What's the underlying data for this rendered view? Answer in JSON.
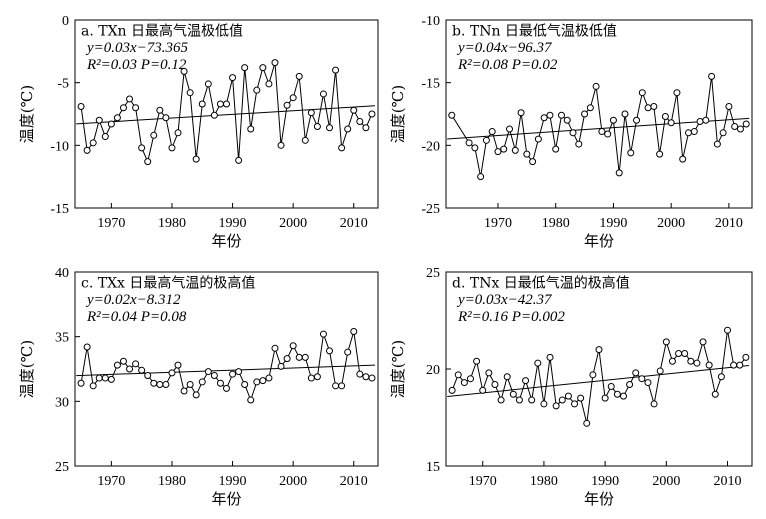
{
  "figure": {
    "xlabel": "年份",
    "ylabel": "温度(℃)"
  },
  "chart_data": [
    {
      "type": "line",
      "title": "a. TXn 日最高气温极低值",
      "equation": "y=0.03x−73.365",
      "stats": "R²=0.03 P=0.12",
      "xlabel": "年份",
      "ylabel": "温度(℃)",
      "xlim": [
        1964,
        2014
      ],
      "ylim": [
        -15,
        0
      ],
      "xticks": [
        1970,
        1980,
        1990,
        2000,
        2010
      ],
      "yticks": [
        0,
        -5,
        -10,
        -15
      ],
      "x": [
        1965,
        1966,
        1967,
        1968,
        1969,
        1970,
        1971,
        1972,
        1973,
        1974,
        1975,
        1976,
        1977,
        1978,
        1979,
        1980,
        1981,
        1982,
        1983,
        1984,
        1985,
        1986,
        1987,
        1988,
        1989,
        1990,
        1991,
        1992,
        1993,
        1994,
        1995,
        1996,
        1997,
        1998,
        1999,
        2000,
        2001,
        2002,
        2003,
        2004,
        2005,
        2006,
        2007,
        2008,
        2009,
        2010,
        2011,
        2012,
        2013
      ],
      "values": [
        -6.9,
        -10.4,
        -9.8,
        -8.0,
        -9.3,
        -8.3,
        -7.8,
        -7.0,
        -6.3,
        -7.0,
        -10.2,
        -11.3,
        -9.2,
        -7.2,
        -7.8,
        -10.2,
        -9.0,
        -4.1,
        -5.8,
        -11.1,
        -6.7,
        -5.1,
        -7.6,
        -6.7,
        -6.7,
        -4.6,
        -11.2,
        -3.8,
        -8.7,
        -5.6,
        -3.8,
        -5.1,
        -3.4,
        -10.0,
        -6.8,
        -6.2,
        -4.5,
        -9.6,
        -7.4,
        -8.5,
        -5.9,
        -8.6,
        -4.0,
        -10.2,
        -8.7,
        -7.2,
        -8.1,
        -8.6,
        -7.5
      ],
      "trend": [
        -8.285,
        -6.845
      ]
    },
    {
      "type": "line",
      "title": "b. TNn 日最低气温极低值",
      "equation": "y=0.04x−96.37",
      "stats": "R²=0.08 P=0.02",
      "xlabel": "年份",
      "ylabel": "温度(℃)",
      "xlim": [
        1961,
        2014
      ],
      "ylim": [
        -25,
        -10
      ],
      "xticks": [
        1970,
        1980,
        1990,
        2000,
        2010
      ],
      "yticks": [
        -10,
        -15,
        -20,
        -25
      ],
      "x": [
        1962,
        1965,
        1966,
        1967,
        1968,
        1969,
        1970,
        1971,
        1972,
        1973,
        1974,
        1975,
        1976,
        1977,
        1978,
        1979,
        1980,
        1981,
        1982,
        1983,
        1984,
        1985,
        1986,
        1987,
        1988,
        1989,
        1990,
        1991,
        1992,
        1993,
        1994,
        1995,
        1996,
        1997,
        1998,
        1999,
        2000,
        2001,
        2002,
        2003,
        2004,
        2005,
        2006,
        2007,
        2008,
        2009,
        2010,
        2011,
        2012,
        2013
      ],
      "values": [
        -17.6,
        -19.8,
        -20.2,
        -22.5,
        -19.6,
        -18.9,
        -20.5,
        -20.3,
        -18.7,
        -20.4,
        -17.4,
        -20.7,
        -21.3,
        -19.5,
        -17.8,
        -17.6,
        -20.3,
        -17.6,
        -18.0,
        -19.0,
        -19.9,
        -17.5,
        -17.0,
        -15.3,
        -18.9,
        -19.1,
        -18.0,
        -22.2,
        -17.5,
        -20.6,
        -18.0,
        -15.8,
        -17.0,
        -16.9,
        -20.7,
        -17.7,
        -18.2,
        -15.8,
        -21.1,
        -19.0,
        -18.9,
        -18.1,
        -18.0,
        -14.5,
        -19.9,
        -19.0,
        -16.9,
        -18.5,
        -18.7,
        -18.3
      ],
      "trend": [
        -19.49,
        -17.85
      ]
    },
    {
      "type": "line",
      "title": "c. TXx 日最高气温的极高值",
      "equation": "y=0.02x−8.312",
      "stats": "R²=0.04 P=0.08",
      "xlabel": "年份",
      "ylabel": "温度(℃)",
      "xlim": [
        1964,
        2014
      ],
      "ylim": [
        25,
        40
      ],
      "xticks": [
        1970,
        1980,
        1990,
        2000,
        2010
      ],
      "yticks": [
        40,
        35,
        30,
        25
      ],
      "x": [
        1965,
        1966,
        1967,
        1968,
        1969,
        1970,
        1971,
        1972,
        1973,
        1974,
        1975,
        1976,
        1977,
        1978,
        1979,
        1980,
        1981,
        1982,
        1983,
        1984,
        1985,
        1986,
        1987,
        1988,
        1989,
        1990,
        1991,
        1992,
        1993,
        1994,
        1995,
        1996,
        1997,
        1998,
        1999,
        2000,
        2001,
        2002,
        2003,
        2004,
        2005,
        2006,
        2007,
        2008,
        2009,
        2010,
        2011,
        2012,
        2013
      ],
      "values": [
        31.4,
        34.2,
        31.2,
        31.8,
        31.8,
        31.7,
        32.8,
        33.1,
        32.5,
        32.9,
        32.4,
        32.0,
        31.4,
        31.3,
        31.3,
        32.2,
        32.8,
        30.8,
        31.3,
        30.5,
        31.5,
        32.3,
        32.0,
        31.4,
        31.0,
        32.1,
        32.3,
        31.3,
        30.1,
        31.5,
        31.6,
        31.8,
        34.1,
        32.7,
        33.3,
        34.3,
        33.4,
        33.4,
        31.8,
        31.9,
        35.2,
        33.9,
        31.2,
        31.2,
        33.8,
        35.4,
        32.1,
        31.9,
        31.8
      ],
      "trend": [
        31.99,
        32.8
      ]
    },
    {
      "type": "line",
      "title": "d. TNx 日最低气温的极高值",
      "equation": "y=0.03x−42.37",
      "stats": "R²=0.16 P=0.002",
      "xlabel": "年份",
      "ylabel": "温度(℃)",
      "xlim": [
        1964,
        2014
      ],
      "ylim": [
        15,
        25
      ],
      "xticks": [
        1970,
        1980,
        1990,
        2000,
        2010
      ],
      "yticks": [
        25,
        20,
        15
      ],
      "x": [
        1965,
        1966,
        1967,
        1968,
        1969,
        1970,
        1971,
        1972,
        1973,
        1974,
        1975,
        1976,
        1977,
        1978,
        1979,
        1980,
        1981,
        1982,
        1983,
        1984,
        1985,
        1986,
        1987,
        1988,
        1989,
        1990,
        1991,
        1992,
        1993,
        1994,
        1995,
        1996,
        1997,
        1998,
        1999,
        2000,
        2001,
        2002,
        2003,
        2004,
        2005,
        2006,
        2007,
        2008,
        2009,
        2010,
        2011,
        2012,
        2013
      ],
      "values": [
        18.9,
        19.7,
        19.3,
        19.5,
        20.4,
        18.9,
        19.8,
        19.2,
        18.4,
        19.6,
        18.7,
        18.4,
        19.4,
        18.4,
        20.3,
        18.2,
        20.6,
        18.1,
        18.4,
        18.6,
        18.2,
        18.5,
        17.2,
        19.7,
        21.0,
        18.5,
        19.1,
        18.7,
        18.6,
        19.2,
        19.8,
        19.5,
        19.3,
        18.2,
        19.9,
        21.4,
        20.4,
        20.8,
        20.8,
        20.4,
        20.3,
        21.4,
        20.2,
        18.7,
        19.6,
        22.0,
        20.2,
        20.2,
        20.6
      ],
      "trend": [
        18.58,
        20.18
      ]
    }
  ]
}
